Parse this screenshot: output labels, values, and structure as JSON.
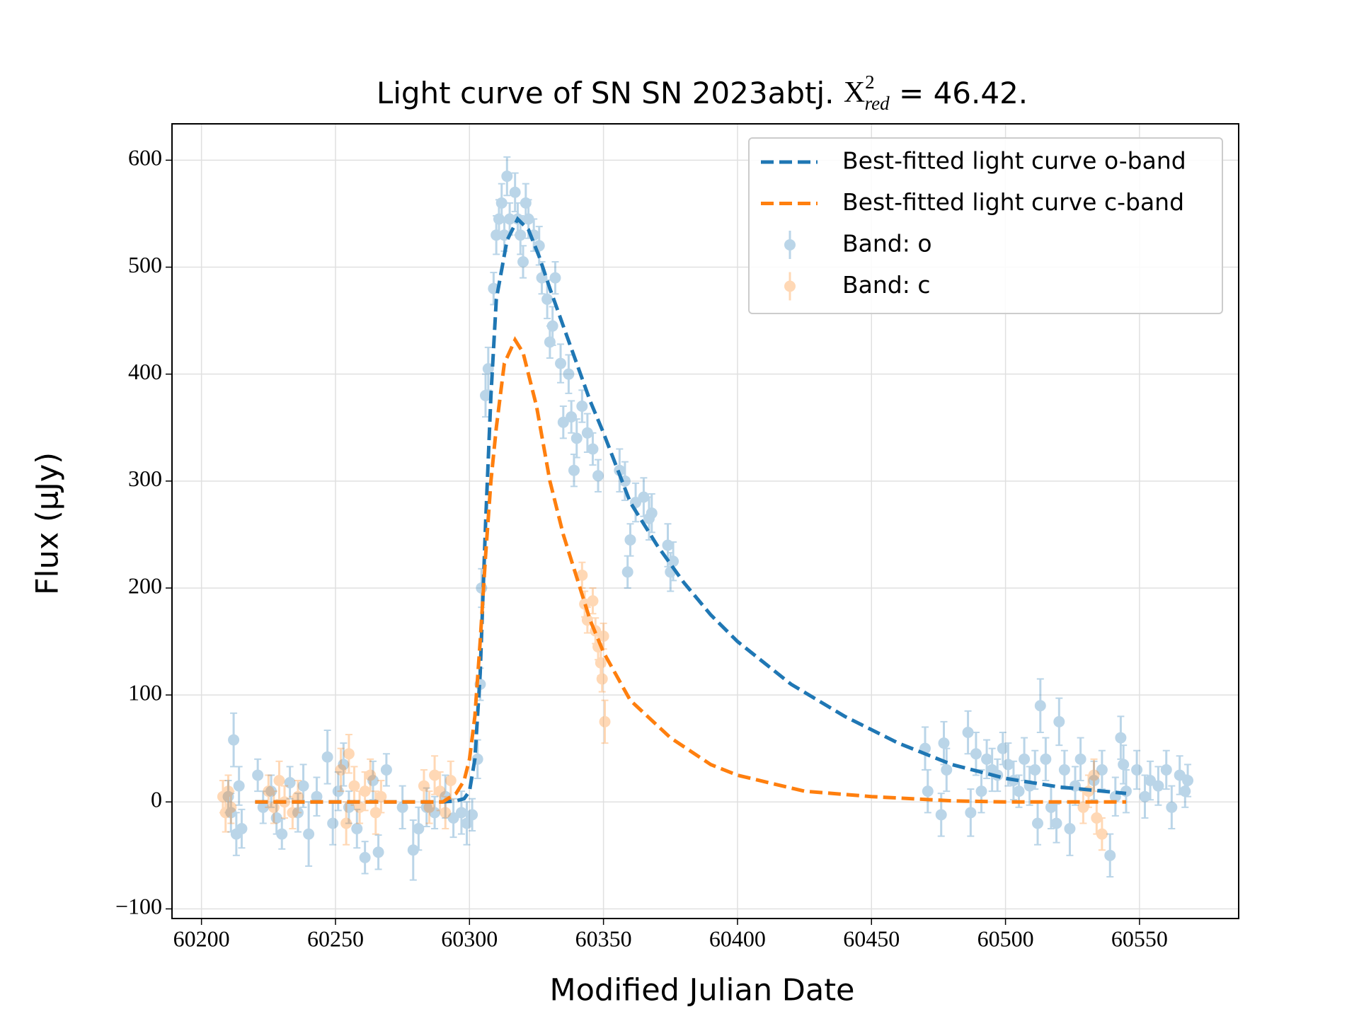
{
  "chart_data": {
    "type": "scatter",
    "title": {
      "text": "Light curve of SN SN 2023abtj.",
      "symbol": "X",
      "sup": "2",
      "sub": "red",
      "value": "= 46.42."
    },
    "xlabel": "Modified Julian Date",
    "ylabel": "Flux (μJy)",
    "xlim": [
      60189,
      60587
    ],
    "ylim": [
      -109,
      634
    ],
    "xticks": [
      60200,
      60250,
      60300,
      60350,
      60400,
      60450,
      60500,
      60550
    ],
    "yticks": [
      {
        "value": -100,
        "label": "−100"
      },
      0,
      100,
      200,
      300,
      400,
      500,
      600
    ],
    "grid": true,
    "legend": "upper right",
    "lines": [
      {
        "name": "Best-fitted light curve o-band",
        "color": "#1f77b4",
        "x": [
          60220,
          60290,
          60295,
          60298,
          60300,
          60302,
          60304,
          60306,
          60308,
          60310,
          60314,
          60318,
          60322,
          60326,
          60330,
          60335,
          60340,
          60345,
          60350,
          60360,
          60370,
          60380,
          60390,
          60400,
          60420,
          60440,
          60460,
          60480,
          60500,
          60520,
          60545
        ],
        "values": [
          0,
          0,
          1,
          3,
          10,
          40,
          120,
          260,
          380,
          470,
          525,
          545,
          535,
          510,
          480,
          445,
          410,
          375,
          345,
          280,
          240,
          205,
          175,
          150,
          110,
          80,
          55,
          35,
          22,
          14,
          8
        ]
      },
      {
        "name": "Best-fitted light curve c-band",
        "color": "#ff7f0e",
        "x": [
          60220,
          60290,
          60295,
          60298,
          60300,
          60302,
          60304,
          60306,
          60308,
          60310,
          60313,
          60317,
          60320,
          60325,
          60330,
          60335,
          60340,
          60345,
          60350,
          60360,
          60375,
          60390,
          60400,
          60425,
          60450,
          60480,
          60500,
          60545
        ],
        "values": [
          0,
          0,
          8,
          20,
          40,
          80,
          150,
          230,
          300,
          350,
          410,
          432,
          420,
          370,
          300,
          250,
          210,
          170,
          140,
          95,
          60,
          35,
          25,
          10,
          5,
          1,
          0,
          0
        ]
      }
    ],
    "series": [
      {
        "name": "Band: o",
        "color": "#1f77b4",
        "x": [
          60210,
          60211,
          60212,
          60213,
          60214,
          60215,
          60221,
          60223,
          60226,
          60228,
          60230,
          60233,
          60236,
          60238,
          60240,
          60243,
          60247,
          60249,
          60251,
          60253,
          60255,
          60258,
          60261,
          60264,
          60266,
          60269,
          60275,
          60279,
          60281,
          60284,
          60287,
          60291,
          60294,
          60297,
          60299,
          60301,
          60303,
          60304,
          60304.5,
          60306,
          60307,
          60309,
          60310,
          60311,
          60312,
          60313,
          60314,
          60315,
          60317,
          60318,
          60319,
          60320,
          60321,
          60322,
          60324,
          60326,
          60327,
          60329,
          60330,
          60331,
          60332,
          60334,
          60335,
          60337,
          60338,
          60339,
          60340,
          60342,
          60344,
          60346,
          60348,
          60356,
          60358,
          60359,
          60360,
          60362,
          60365,
          60367,
          60368,
          60374,
          60375,
          60376,
          60470,
          60471,
          60476,
          60477,
          60478,
          60486,
          60487,
          60489,
          60491,
          60493,
          60495,
          60497,
          60499,
          60501,
          60503,
          60505,
          60507,
          60509,
          60511,
          60512,
          60513,
          60515,
          60517,
          60519,
          60520,
          60522,
          60524,
          60526,
          60528,
          60533,
          60536,
          60539,
          60541,
          60543,
          60544,
          60545,
          60549,
          60552,
          60554,
          60557,
          60560,
          60562,
          60565,
          60567,
          60568
        ],
        "values": [
          5,
          -10,
          58,
          -30,
          15,
          -25,
          25,
          -5,
          10,
          -15,
          -30,
          18,
          -10,
          15,
          -30,
          5,
          42,
          -20,
          10,
          35,
          -5,
          -25,
          -52,
          20,
          -47,
          30,
          -5,
          -45,
          -25,
          -5,
          -10,
          5,
          -15,
          -10,
          -20,
          -12,
          40,
          110,
          200,
          380,
          405,
          480,
          530,
          545,
          560,
          530,
          585,
          545,
          570,
          545,
          530,
          505,
          560,
          545,
          530,
          520,
          490,
          470,
          430,
          445,
          490,
          410,
          355,
          400,
          360,
          310,
          340,
          370,
          345,
          330,
          305,
          310,
          300,
          215,
          245,
          280,
          285,
          265,
          270,
          240,
          215,
          225,
          50,
          10,
          -12,
          55,
          30,
          65,
          -10,
          45,
          10,
          40,
          30,
          25,
          50,
          35,
          20,
          10,
          40,
          15,
          30,
          -20,
          90,
          40,
          -5,
          -20,
          75,
          30,
          -25,
          15,
          40,
          20,
          30,
          -50,
          5,
          60,
          35,
          10,
          30,
          5,
          20,
          15,
          30,
          -5,
          25,
          10,
          20
        ],
        "errors": [
          15,
          18,
          25,
          20,
          18,
          18,
          15,
          15,
          15,
          15,
          14,
          15,
          18,
          20,
          30,
          18,
          25,
          20,
          18,
          20,
          15,
          18,
          15,
          18,
          16,
          15,
          20,
          28,
          20,
          18,
          15,
          20,
          18,
          20,
          20,
          15,
          18,
          15,
          18,
          20,
          20,
          15,
          18,
          18,
          18,
          15,
          18,
          15,
          18,
          15,
          18,
          15,
          18,
          18,
          15,
          18,
          15,
          18,
          15,
          18,
          15,
          18,
          15,
          18,
          15,
          15,
          18,
          15,
          18,
          15,
          15,
          20,
          18,
          15,
          15,
          18,
          18,
          20,
          18,
          20,
          18,
          18,
          20,
          20,
          20,
          20,
          20,
          20,
          22,
          20,
          20,
          18,
          20,
          15,
          15,
          20,
          18,
          15,
          20,
          18,
          18,
          20,
          25,
          20,
          20,
          18,
          22,
          18,
          25,
          18,
          20,
          18,
          18,
          20,
          18,
          20,
          18,
          20,
          18,
          20,
          18,
          18,
          18,
          20,
          18,
          15,
          15
        ]
      },
      {
        "name": "Band: c",
        "color": "#ff7f0e",
        "x": [
          60208,
          60209,
          60210,
          60211,
          60225,
          60227,
          60229,
          60231,
          60234,
          60236,
          60252,
          60254,
          60255,
          60257,
          60259,
          60261,
          60263,
          60265,
          60267,
          60283,
          60285,
          60287,
          60289,
          60291,
          60293,
          60342,
          60343,
          60344,
          60346,
          60347,
          60348,
          60349,
          60349.5,
          60350,
          60350.5,
          60529,
          60531,
          60533,
          60534,
          60536
        ],
        "values": [
          5,
          -10,
          10,
          -5,
          10,
          -5,
          20,
          0,
          -10,
          5,
          30,
          -20,
          45,
          15,
          -5,
          10,
          25,
          -10,
          5,
          15,
          -5,
          25,
          10,
          -10,
          20,
          212,
          185,
          170,
          188,
          160,
          145,
          130,
          115,
          155,
          75,
          -5,
          10,
          25,
          -15,
          -30
        ],
        "errors": [
          15,
          18,
          15,
          15,
          15,
          15,
          18,
          15,
          15,
          15,
          20,
          20,
          18,
          18,
          15,
          18,
          15,
          20,
          15,
          15,
          15,
          18,
          18,
          15,
          18,
          12,
          12,
          12,
          12,
          12,
          12,
          12,
          12,
          12,
          20,
          15,
          15,
          15,
          15,
          15
        ]
      }
    ]
  }
}
